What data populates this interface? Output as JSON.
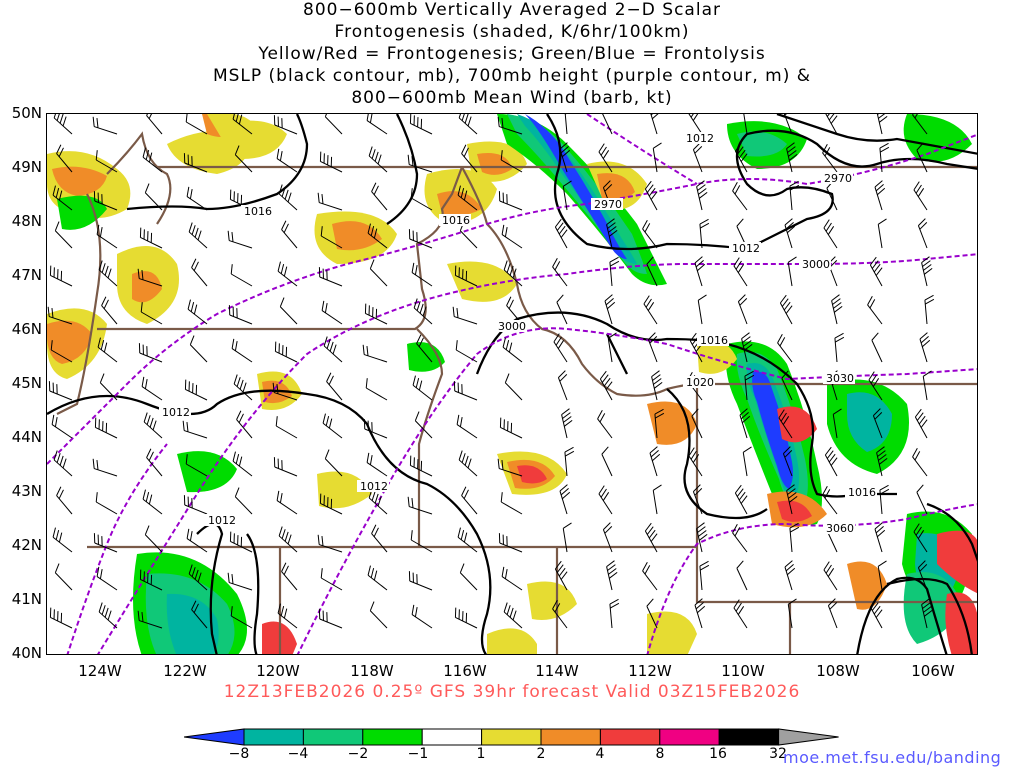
{
  "title": {
    "line1": "800−600mb Vertically Averaged 2−D Scalar",
    "line2": "Frontogenesis (shaded, K/6hr/100km)",
    "line3": "Yellow/Red = Frontogenesis;  Green/Blue = Frontolysis",
    "line4": "MSLP (black contour, mb), 700mb height (purple contour, m) &",
    "line5": "800−600mb Mean Wind (barb, kt)"
  },
  "latitudes": [
    "50N",
    "49N",
    "48N",
    "47N",
    "46N",
    "45N",
    "44N",
    "43N",
    "42N",
    "41N",
    "40N"
  ],
  "longitudes": [
    "124W",
    "122W",
    "120W",
    "118W",
    "116W",
    "114W",
    "112W",
    "110W",
    "108W",
    "106W"
  ],
  "contour_labels": {
    "mslp": [
      "1012",
      "1016",
      "1016",
      "1012",
      "1012",
      "1016",
      "1020",
      "1016",
      "1012",
      "1012"
    ],
    "height": [
      "2970",
      "2970",
      "3000",
      "3000",
      "3030",
      "3060"
    ]
  },
  "valid_line": "12Z13FEB2026 0.25º GFS 39hr forecast Valid 03Z15FEB2026",
  "colorbar": {
    "ticks": [
      "−8",
      "−4",
      "−2",
      "−1",
      "1",
      "2",
      "4",
      "8",
      "16",
      "32"
    ],
    "colors": [
      "#1e3cff",
      "#00b4a0",
      "#10c878",
      "#00dc00",
      "#ffffff",
      "#e6dc32",
      "#f08c28",
      "#f03c3c",
      "#f00082",
      "#000000",
      "#a0a0a0"
    ]
  },
  "credit": "moe.met.fsu.edu/banding",
  "colors": {
    "frontogenesis_weak": "#e6dc32",
    "frontogenesis_mod": "#f08c28",
    "frontogenesis_strong": "#f03c3c",
    "frontolysis_weak": "#00dc00",
    "frontolysis_mod": "#10c878",
    "frontolysis_strong": "#00b4a0",
    "frontolysis_max": "#1e3cff",
    "mslp_contour": "#000000",
    "height_contour": "#9900cc",
    "borders": "#7a5a48"
  }
}
